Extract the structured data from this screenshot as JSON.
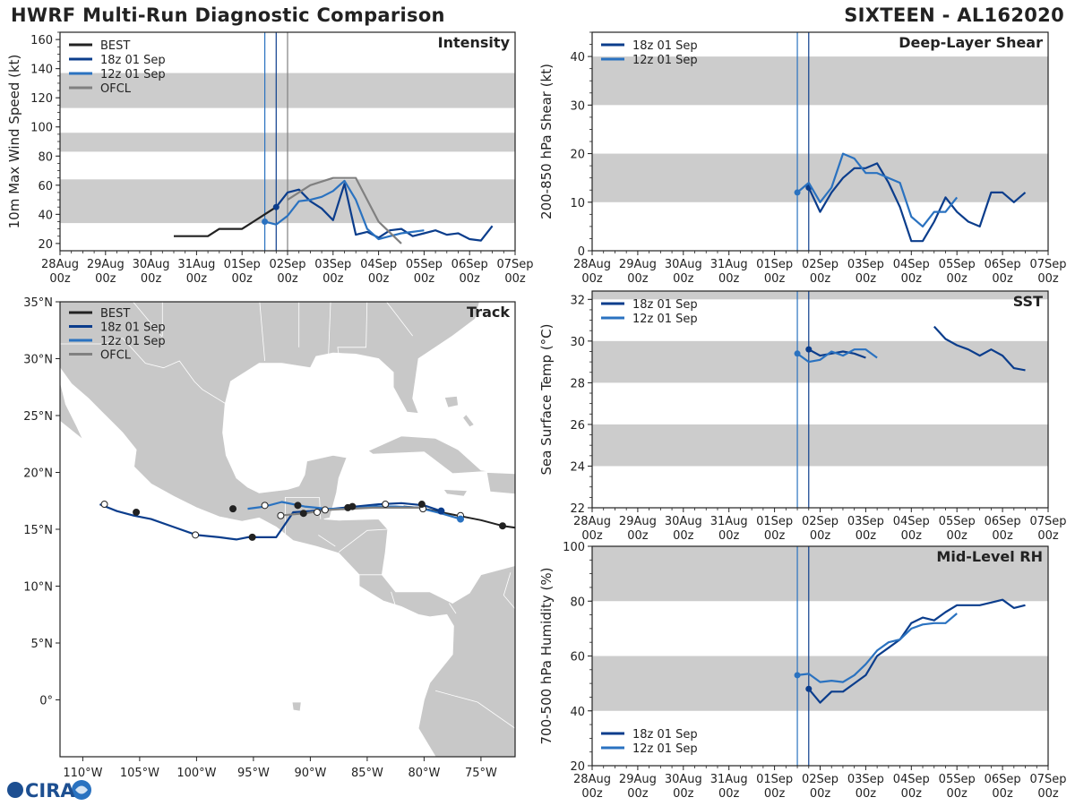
{
  "header": {
    "title": "HWRF Multi-Run Diagnostic Comparison",
    "storm": "SIXTEEN - AL162020"
  },
  "logo": {
    "text": "CIRA"
  },
  "colors": {
    "best": "#222222",
    "run18": "#0b3d8c",
    "run12": "#2a72c0",
    "ofcl": "#808080",
    "band": "#cccccc",
    "land": "#c8c8c8",
    "vline18": "#0b3d8c",
    "vline12": "#2a72c0",
    "vlineOfcl": "#606060"
  },
  "time_axis": {
    "ticks": [
      {
        "d": 0,
        "l1": "28Aug",
        "l2": "00z"
      },
      {
        "d": 1,
        "l1": "29Aug",
        "l2": "00z"
      },
      {
        "d": 2,
        "l1": "30Aug",
        "l2": "00z"
      },
      {
        "d": 3,
        "l1": "31Aug",
        "l2": "00z"
      },
      {
        "d": 4,
        "l1": "01Sep",
        "l2": "00z"
      },
      {
        "d": 5,
        "l1": "02Sep",
        "l2": "00z"
      },
      {
        "d": 6,
        "l1": "03Sep",
        "l2": "00z"
      },
      {
        "d": 7,
        "l1": "04Sep",
        "l2": "00z"
      },
      {
        "d": 8,
        "l1": "05Sep",
        "l2": "00z"
      },
      {
        "d": 9,
        "l1": "06Sep",
        "l2": "00z"
      },
      {
        "d": 10,
        "l1": "07Sep",
        "l2": "00z"
      }
    ]
  },
  "chart_data": [
    {
      "id": "intensity",
      "type": "line",
      "title": "Intensity",
      "ylabel": "10m Max Wind Speed (kt)",
      "xlim": [
        0,
        10
      ],
      "ylim": [
        15,
        165
      ],
      "yticks": [
        20,
        40,
        60,
        80,
        100,
        120,
        140,
        160
      ],
      "bands": [
        [
          34,
          64
        ],
        [
          83,
          96
        ],
        [
          113,
          137
        ]
      ],
      "vlines": [
        {
          "x": 4.5,
          "color": "run12"
        },
        {
          "x": 4.75,
          "color": "run18"
        },
        {
          "x": 5.0,
          "color": "ofcl"
        }
      ],
      "legend": [
        "BEST",
        "18z 01 Sep",
        "12z 01 Sep",
        "OFCL"
      ],
      "series": [
        {
          "name": "BEST",
          "color": "best",
          "width": 2.2,
          "x": [
            2.5,
            2.75,
            3.0,
            3.25,
            3.5,
            3.75,
            4.0,
            4.25,
            4.5,
            4.75
          ],
          "y": [
            25,
            25,
            25,
            25,
            30,
            30,
            30,
            35,
            40,
            45
          ],
          "end_marker": false
        },
        {
          "name": "18z 01 Sep",
          "color": "run18",
          "width": 2.2,
          "x": [
            4.75,
            5.0,
            5.25,
            5.5,
            5.75,
            6.0,
            6.25,
            6.5,
            6.75,
            7.0,
            7.25,
            7.5,
            7.75,
            8.0,
            8.25,
            8.5,
            8.75,
            9.0,
            9.25,
            9.5
          ],
          "y": [
            45,
            55,
            57,
            49,
            44,
            36,
            61,
            26,
            28,
            24,
            29,
            30,
            25,
            27,
            29,
            26,
            27,
            23,
            22,
            32
          ],
          "start_marker": true
        },
        {
          "name": "12z 01 Sep",
          "color": "run12",
          "width": 2.2,
          "x": [
            4.5,
            4.75,
            5.0,
            5.25,
            5.5,
            5.75,
            6.0,
            6.25,
            6.5,
            6.75,
            7.0,
            7.25,
            7.5,
            7.75,
            8.0
          ],
          "y": [
            35,
            33,
            39,
            49,
            50,
            52,
            56,
            63,
            50,
            30,
            23,
            25,
            27,
            28,
            29
          ],
          "start_marker": true
        },
        {
          "name": "OFCL",
          "color": "ofcl",
          "width": 2.2,
          "x": [
            5.0,
            5.5,
            6.0,
            6.5,
            7.0,
            7.5
          ],
          "y": [
            50,
            60,
            65,
            65,
            35,
            20
          ]
        }
      ]
    },
    {
      "id": "shear",
      "type": "line",
      "title": "Deep-Layer Shear",
      "ylabel": "200-850 hPa Shear (kt)",
      "xlim": [
        0,
        10
      ],
      "ylim": [
        0,
        45
      ],
      "yticks": [
        0,
        10,
        20,
        30,
        40
      ],
      "bands": [
        [
          10,
          20
        ],
        [
          30,
          40
        ]
      ],
      "vlines": [
        {
          "x": 4.5,
          "color": "run12"
        },
        {
          "x": 4.75,
          "color": "run18"
        }
      ],
      "legend": [
        "18z 01 Sep",
        "12z 01 Sep"
      ],
      "series": [
        {
          "name": "18z 01 Sep",
          "color": "run18",
          "width": 2.2,
          "x": [
            4.75,
            5.0,
            5.25,
            5.5,
            5.75,
            6.0,
            6.25,
            6.5,
            6.75,
            7.0,
            7.25,
            7.5,
            7.75,
            8.0,
            8.25,
            8.5,
            8.75,
            9.0,
            9.25,
            9.5
          ],
          "y": [
            13,
            8,
            12,
            15,
            17,
            17,
            18,
            14,
            9,
            2,
            2,
            6,
            11,
            8,
            6,
            5,
            12,
            12,
            10,
            12
          ],
          "start_marker": true
        },
        {
          "name": "12z 01 Sep",
          "color": "run12",
          "width": 2.2,
          "x": [
            4.5,
            4.75,
            5.0,
            5.25,
            5.5,
            5.75,
            6.0,
            6.25,
            6.5,
            6.75,
            7.0,
            7.25,
            7.5,
            7.75,
            8.0
          ],
          "y": [
            12,
            14,
            10,
            13,
            20,
            19,
            16,
            16,
            15,
            14,
            7,
            5,
            8,
            8,
            11
          ],
          "start_marker": true
        }
      ]
    },
    {
      "id": "sst",
      "type": "line",
      "title": "SST",
      "ylabel": "Sea Surface Temp (°C)",
      "xlim": [
        0,
        10
      ],
      "ylim": [
        22,
        32.4
      ],
      "yticks": [
        22,
        24,
        26,
        28,
        30,
        32
      ],
      "bands": [
        [
          24,
          26
        ],
        [
          28,
          30
        ],
        [
          32,
          32.4
        ]
      ],
      "vlines": [
        {
          "x": 4.5,
          "color": "run12"
        },
        {
          "x": 4.75,
          "color": "run18"
        }
      ],
      "legend": [
        "18z 01 Sep",
        "12z 01 Sep"
      ],
      "series": [
        {
          "name": "18z 01 Sep",
          "color": "run18",
          "width": 2.2,
          "x": [
            4.75,
            5.0,
            5.25,
            5.5,
            5.75,
            6.0
          ],
          "y": [
            29.6,
            29.3,
            29.4,
            29.5,
            29.4,
            29.2
          ],
          "start_marker": true
        },
        {
          "name": "18z 01 Sep (cont.)",
          "color": "run18",
          "width": 2.2,
          "x": [
            7.5,
            7.75,
            8.0,
            8.25,
            8.5,
            8.75,
            9.0,
            9.25,
            9.5
          ],
          "y": [
            30.7,
            30.1,
            29.8,
            29.6,
            29.3,
            29.6,
            29.3,
            28.7,
            28.6
          ]
        },
        {
          "name": "12z 01 Sep",
          "color": "run12",
          "width": 2.2,
          "x": [
            4.5,
            4.75,
            5.0,
            5.25,
            5.5,
            5.75,
            6.0,
            6.25
          ],
          "y": [
            29.4,
            29.0,
            29.1,
            29.5,
            29.3,
            29.6,
            29.6,
            29.2
          ],
          "start_marker": true
        }
      ]
    },
    {
      "id": "rh",
      "type": "line",
      "title": "Mid-Level RH",
      "ylabel": "700-500 hPa Humidity (%)",
      "xlim": [
        0,
        10
      ],
      "ylim": [
        20,
        100
      ],
      "yticks": [
        20,
        40,
        60,
        80,
        100
      ],
      "bands": [
        [
          40,
          60
        ],
        [
          80,
          100
        ]
      ],
      "vlines": [
        {
          "x": 4.5,
          "color": "run12"
        },
        {
          "x": 4.75,
          "color": "run18"
        }
      ],
      "legend": [
        "18z 01 Sep",
        "12z 01 Sep"
      ],
      "legend_position": "bottom-left",
      "series": [
        {
          "name": "18z 01 Sep",
          "color": "run18",
          "width": 2.2,
          "x": [
            4.75,
            5.0,
            5.25,
            5.5,
            5.75,
            6.0,
            6.25,
            6.5,
            6.75,
            7.0,
            7.25,
            7.5,
            7.75,
            8.0,
            8.25,
            8.5,
            8.75,
            9.0,
            9.25,
            9.5
          ],
          "y": [
            48,
            43,
            47,
            47,
            50,
            53,
            60,
            63,
            66,
            72,
            74,
            73,
            76,
            78.5,
            78.5,
            78.5,
            79.5,
            80.5,
            77.5,
            78.5
          ],
          "start_marker": true
        },
        {
          "name": "12z 01 Sep",
          "color": "run12",
          "width": 2.2,
          "x": [
            4.5,
            4.75,
            5.0,
            5.25,
            5.5,
            5.75,
            6.0,
            6.25,
            6.5,
            6.75,
            7.0,
            7.25,
            7.5,
            7.75,
            8.0
          ],
          "y": [
            53,
            53.5,
            50.5,
            51,
            50.5,
            53,
            57,
            62,
            65,
            66,
            70,
            71.5,
            72,
            72,
            75.5
          ],
          "start_marker": true
        }
      ]
    },
    {
      "id": "track",
      "type": "scatter",
      "title": "Track",
      "xlim": [
        -112,
        -72
      ],
      "ylim": [
        -5,
        35
      ],
      "xticks": [
        {
          "v": -110,
          "l": "110°W"
        },
        {
          "v": -105,
          "l": "105°W"
        },
        {
          "v": -100,
          "l": "100°W"
        },
        {
          "v": -95,
          "l": "95°W"
        },
        {
          "v": -90,
          "l": "90°W"
        },
        {
          "v": -85,
          "l": "85°W"
        },
        {
          "v": -80,
          "l": "80°W"
        },
        {
          "v": -75,
          "l": "75°W"
        }
      ],
      "yticks": [
        {
          "v": 0,
          "l": "0°"
        },
        {
          "v": 5,
          "l": "5°N"
        },
        {
          "v": 10,
          "l": "10°N"
        },
        {
          "v": 15,
          "l": "15°N"
        },
        {
          "v": 20,
          "l": "20°N"
        },
        {
          "v": 25,
          "l": "25°N"
        },
        {
          "v": 30,
          "l": "30°N"
        },
        {
          "v": 35,
          "l": "35°N"
        }
      ],
      "legend": [
        "BEST",
        "18z 01 Sep",
        "12z 01 Sep",
        "OFCL"
      ],
      "series": [
        {
          "name": "BEST",
          "color": "best",
          "width": 2,
          "lon": [
            -71,
            -73.1,
            -75,
            -77,
            -78.5,
            -79.5,
            -80.5,
            -81.8
          ],
          "lat": [
            15.0,
            15.3,
            15.8,
            16.2,
            16.5,
            16.7,
            16.9,
            17.0
          ],
          "dots": [
            {
              "lon": -73.1,
              "lat": 15.3,
              "fill": "dark"
            },
            {
              "lon": -76.8,
              "lat": 16.2,
              "fill": "white"
            },
            {
              "lon": -80.1,
              "lat": 16.8,
              "fill": "white"
            }
          ]
        },
        {
          "name": "18z 01 Sep",
          "color": "run18",
          "width": 2.2,
          "lon": [
            -78.5,
            -80,
            -82,
            -84,
            -86,
            -88,
            -90,
            -91.5,
            -93,
            -95.5,
            -96.5,
            -98,
            -100,
            -102,
            -104,
            -105.5,
            -107,
            -108.5
          ],
          "lat": [
            16.6,
            17.1,
            17.3,
            17.2,
            17.0,
            16.8,
            16.6,
            16.5,
            14.3,
            14.3,
            14.1,
            14.3,
            14.5,
            15.2,
            15.9,
            16.2,
            16.6,
            17.2
          ],
          "dots": [
            {
              "lon": -78.5,
              "lat": 16.6,
              "fill": "run18"
            },
            {
              "lon": -83.4,
              "lat": 17.2,
              "fill": "white"
            },
            {
              "lon": -86.7,
              "lat": 16.9,
              "fill": "dark"
            },
            {
              "lon": -90.6,
              "lat": 16.4,
              "fill": "dark"
            },
            {
              "lon": -95.1,
              "lat": 14.3,
              "fill": "dark"
            },
            {
              "lon": -100.1,
              "lat": 14.5,
              "fill": "white"
            },
            {
              "lon": -105.3,
              "lat": 16.5,
              "fill": "dark"
            },
            {
              "lon": -108.1,
              "lat": 17.2,
              "fill": "white"
            }
          ]
        },
        {
          "name": "12z 01 Sep",
          "color": "run12",
          "width": 2.2,
          "lon": [
            -76.8,
            -78.5,
            -80.5,
            -82.5,
            -84.5,
            -86.5,
            -88.5,
            -90.5,
            -92.5,
            -94,
            -95.5
          ],
          "lat": [
            15.9,
            16.4,
            16.9,
            17.0,
            17.0,
            16.8,
            16.8,
            17.0,
            17.4,
            17.0,
            16.8
          ],
          "dots": [
            {
              "lon": -76.8,
              "lat": 15.9,
              "fill": "run12"
            },
            {
              "lon": -80.2,
              "lat": 17.2,
              "fill": "dark"
            },
            {
              "lon": -86.3,
              "lat": 17.0,
              "fill": "dark"
            },
            {
              "lon": -91.1,
              "lat": 17.1,
              "fill": "dark"
            },
            {
              "lon": -94.0,
              "lat": 17.1,
              "fill": "white"
            },
            {
              "lon": -96.8,
              "lat": 16.8,
              "fill": "dark"
            }
          ]
        },
        {
          "name": "OFCL",
          "color": "ofcl",
          "width": 2.2,
          "lon": [
            -80.3,
            -82.5,
            -84.5,
            -86.5,
            -88.5,
            -90.5,
            -92.8
          ],
          "lat": [
            16.9,
            16.9,
            16.9,
            16.8,
            16.7,
            16.4,
            16.2
          ],
          "dots": [
            {
              "lon": -88.7,
              "lat": 16.7,
              "fill": "white"
            },
            {
              "lon": -92.6,
              "lat": 16.2,
              "fill": "white"
            },
            {
              "lon": -89.4,
              "lat": 16.5,
              "fill": "white"
            }
          ]
        }
      ]
    }
  ]
}
